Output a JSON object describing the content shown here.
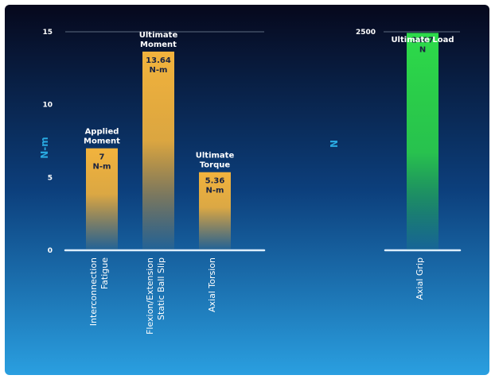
{
  "colors": {
    "background_top": "#06081c",
    "background_mid": "#0c3f7c",
    "background_bottom": "#2a9fe0",
    "bar_moment": "#f2b33d",
    "bar_load": "#2ddb4a",
    "axis_line": "#ddeeff",
    "axis_title": "#29a9e0"
  },
  "chart_data": [
    {
      "type": "bar",
      "ylabel": "N-m",
      "ylim": [
        0,
        15
      ],
      "yticks": [
        "0",
        "5",
        "10",
        "15"
      ],
      "grid": false,
      "categories": [
        [
          "Interconnection",
          "Fatigue"
        ],
        [
          "Flexion/Extension",
          "Static Ball Slip"
        ],
        [
          "Axial Torsion"
        ]
      ],
      "values": [
        7,
        13.64,
        5.36
      ],
      "annotations": [
        [
          "Applied",
          "Moment"
        ],
        [
          "Ultimate",
          "Moment"
        ],
        [
          "Ultimate",
          "Torque"
        ]
      ],
      "value_labels": [
        [
          "7",
          "N-m"
        ],
        [
          "13.64",
          "N-m"
        ],
        [
          "5.36",
          "N-m"
        ]
      ]
    },
    {
      "type": "bar",
      "ylabel": "N",
      "ylim": [
        0,
        2500
      ],
      "yticks": [
        "2500"
      ],
      "grid": false,
      "categories": [
        [
          "Axial Grip"
        ]
      ],
      "values": [
        2487
      ],
      "annotations": [
        [
          "Ultimate Load"
        ]
      ],
      "value_labels": [
        [
          "2487",
          "N"
        ]
      ]
    }
  ]
}
